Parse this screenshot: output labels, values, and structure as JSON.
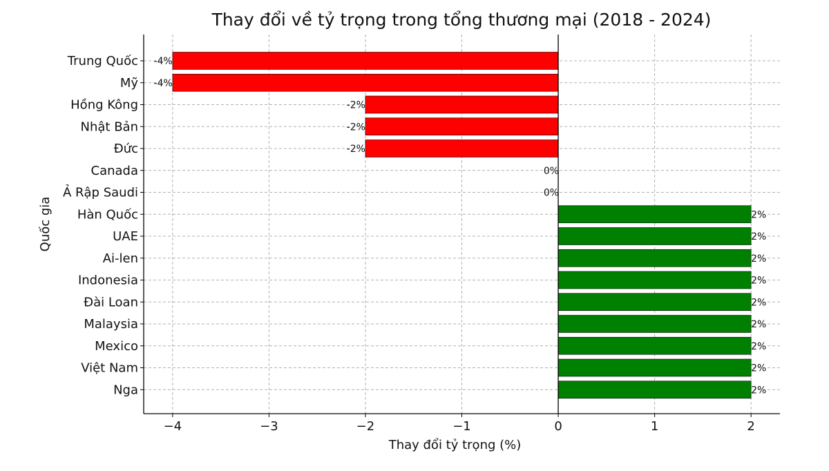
{
  "chart_data": {
    "type": "bar",
    "orientation": "horizontal",
    "title": "Thay đổi về tỷ trọng trong tổng thương mại (2018 - 2024)",
    "xlabel": "Thay đổi tỷ trọng (%)",
    "ylabel": "Quốc gia",
    "xlim": [
      -4.3,
      2.3
    ],
    "xticks": [
      -4,
      -3,
      -2,
      -1,
      0,
      1,
      2
    ],
    "xtick_labels": [
      "−4",
      "−3",
      "−2",
      "−1",
      "0",
      "1",
      "2"
    ],
    "grid": true,
    "categories": [
      "Trung Quốc",
      "Mỹ",
      "Hồng Kông",
      "Nhật Bản",
      "Đức",
      "Canada",
      "Ả Rập Saudi",
      "Hàn Quốc",
      "UAE",
      "Ai-len",
      "Indonesia",
      "Đài Loan",
      "Malaysia",
      "Mexico",
      "Việt Nam",
      "Nga"
    ],
    "values": [
      -4,
      -4,
      -2,
      -2,
      -2,
      0,
      0,
      2,
      2,
      2,
      2,
      2,
      2,
      2,
      2,
      2
    ],
    "data_labels": [
      "-4%",
      "-4%",
      "-2%",
      "-2%",
      "-2%",
      "0%",
      "0%",
      "2%",
      "2%",
      "2%",
      "2%",
      "2%",
      "2%",
      "2%",
      "2%",
      "2%"
    ],
    "colors": {
      "negative": "#ff0000",
      "positive": "#008000",
      "edge": "#000000"
    }
  }
}
